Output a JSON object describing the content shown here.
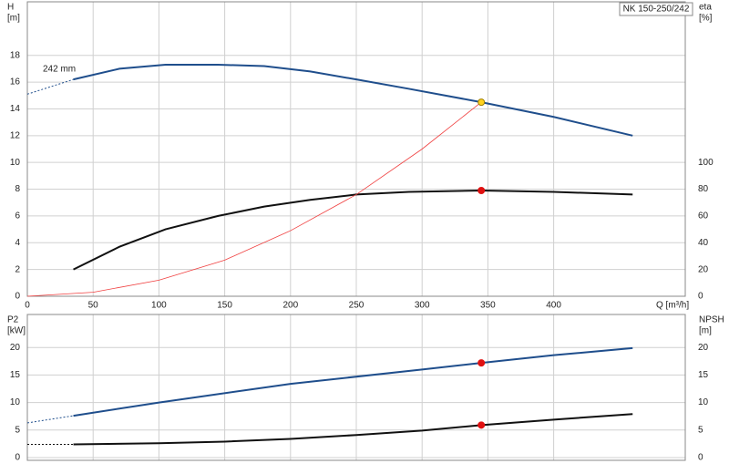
{
  "chart_data": [
    {
      "type": "line",
      "title": "NK 150-250/242",
      "annotation": "242 mm",
      "x_label": "Q [m³/h]",
      "y_label": "H",
      "y_unit": "[m]",
      "y2_label": "eta",
      "y2_unit": "[%]",
      "xlim": [
        0,
        500
      ],
      "xticks": [
        0,
        50,
        100,
        150,
        200,
        250,
        300,
        350,
        400
      ],
      "ylim": [
        0,
        22
      ],
      "yticks": [
        0,
        2,
        4,
        6,
        8,
        10,
        12,
        14,
        16,
        18
      ],
      "y2lim": [
        0,
        220
      ],
      "y2ticks": [
        0,
        20,
        40,
        60,
        80,
        100
      ],
      "grid": true,
      "series": [
        {
          "color": "#1f4e8c",
          "dashed": true,
          "x": [
            0,
            35
          ],
          "values": [
            15.1,
            16.2
          ]
        },
        {
          "color": "#1f4e8c",
          "x": [
            35,
            70,
            105,
            145,
            180,
            215,
            250,
            290,
            345,
            400,
            460
          ],
          "values": [
            16.2,
            17.0,
            17.3,
            17.3,
            17.2,
            16.8,
            16.2,
            15.5,
            14.5,
            13.4,
            12.0
          ]
        },
        {
          "color": "#111111",
          "axis": "y2",
          "x": [
            35,
            70,
            105,
            145,
            180,
            215,
            250,
            290,
            345,
            400,
            460
          ],
          "values": [
            20,
            37,
            50,
            60,
            67,
            72,
            76,
            78,
            79,
            78,
            76
          ]
        },
        {
          "color": "#f04040",
          "thin": true,
          "x": [
            0,
            50,
            100,
            150,
            200,
            250,
            300,
            345
          ],
          "values": [
            0,
            0.3,
            1.2,
            2.7,
            4.9,
            7.6,
            11.0,
            14.5
          ]
        }
      ],
      "markers": [
        {
          "x": 345,
          "value": 14.5,
          "color": "#ffd21f"
        },
        {
          "x": 345,
          "value": 79,
          "axis": "y2",
          "color": "#e01010"
        }
      ]
    },
    {
      "type": "line",
      "y_label": "P2",
      "y_unit": "[kW]",
      "y2_label": "NPSH",
      "y2_unit": "[m]",
      "xlim": [
        0,
        500
      ],
      "ylim": [
        -0.5,
        26
      ],
      "yticks": [
        0,
        5,
        10,
        15,
        20
      ],
      "y2lim": [
        -0.5,
        26
      ],
      "y2ticks": [
        0,
        5,
        10,
        15,
        20
      ],
      "grid": true,
      "series": [
        {
          "color": "#1f4e8c",
          "dashed": true,
          "x": [
            0,
            35
          ],
          "values": [
            6.3,
            7.6
          ]
        },
        {
          "color": "#1f4e8c",
          "x": [
            35,
            100,
            200,
            300,
            345,
            400,
            460
          ],
          "values": [
            7.6,
            10.0,
            13.4,
            16.0,
            17.2,
            18.6,
            19.9
          ]
        },
        {
          "color": "#111111",
          "dashed": true,
          "axis": "y2",
          "x": [
            0,
            35
          ],
          "values": [
            2.4,
            2.4
          ]
        },
        {
          "color": "#111111",
          "axis": "y2",
          "x": [
            35,
            100,
            150,
            200,
            250,
            300,
            345,
            400,
            460
          ],
          "values": [
            2.4,
            2.6,
            2.9,
            3.4,
            4.1,
            4.9,
            5.9,
            6.9,
            7.9
          ]
        }
      ],
      "markers": [
        {
          "x": 345,
          "value": 17.2,
          "color": "#e01010"
        },
        {
          "x": 345,
          "value": 5.9,
          "axis": "y2",
          "color": "#e01010"
        }
      ]
    }
  ]
}
